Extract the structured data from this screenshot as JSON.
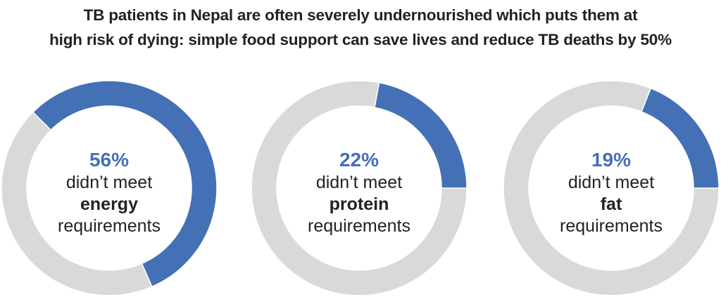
{
  "chart_data": {
    "type": "pie",
    "title_lines": [
      "TB patients in Nepal are often severely undernourished which puts them at",
      "high risk of dying: simple food support can save lives and reduce TB deaths by 50%"
    ],
    "charts": [
      {
        "value": 56,
        "pct_label": "56%",
        "line1": "didn’t meet",
        "keyword": "energy",
        "line3": "requirements"
      },
      {
        "value": 22,
        "pct_label": "22%",
        "line1": "didn’t meet",
        "keyword": "protein",
        "line3": "requirements"
      },
      {
        "value": 19,
        "pct_label": "19%",
        "line1": "didn’t meet",
        "keyword": "fat",
        "line3": "requirements"
      }
    ],
    "colors": {
      "highlight": "#4470b6",
      "remainder": "#d9d9d9"
    }
  }
}
